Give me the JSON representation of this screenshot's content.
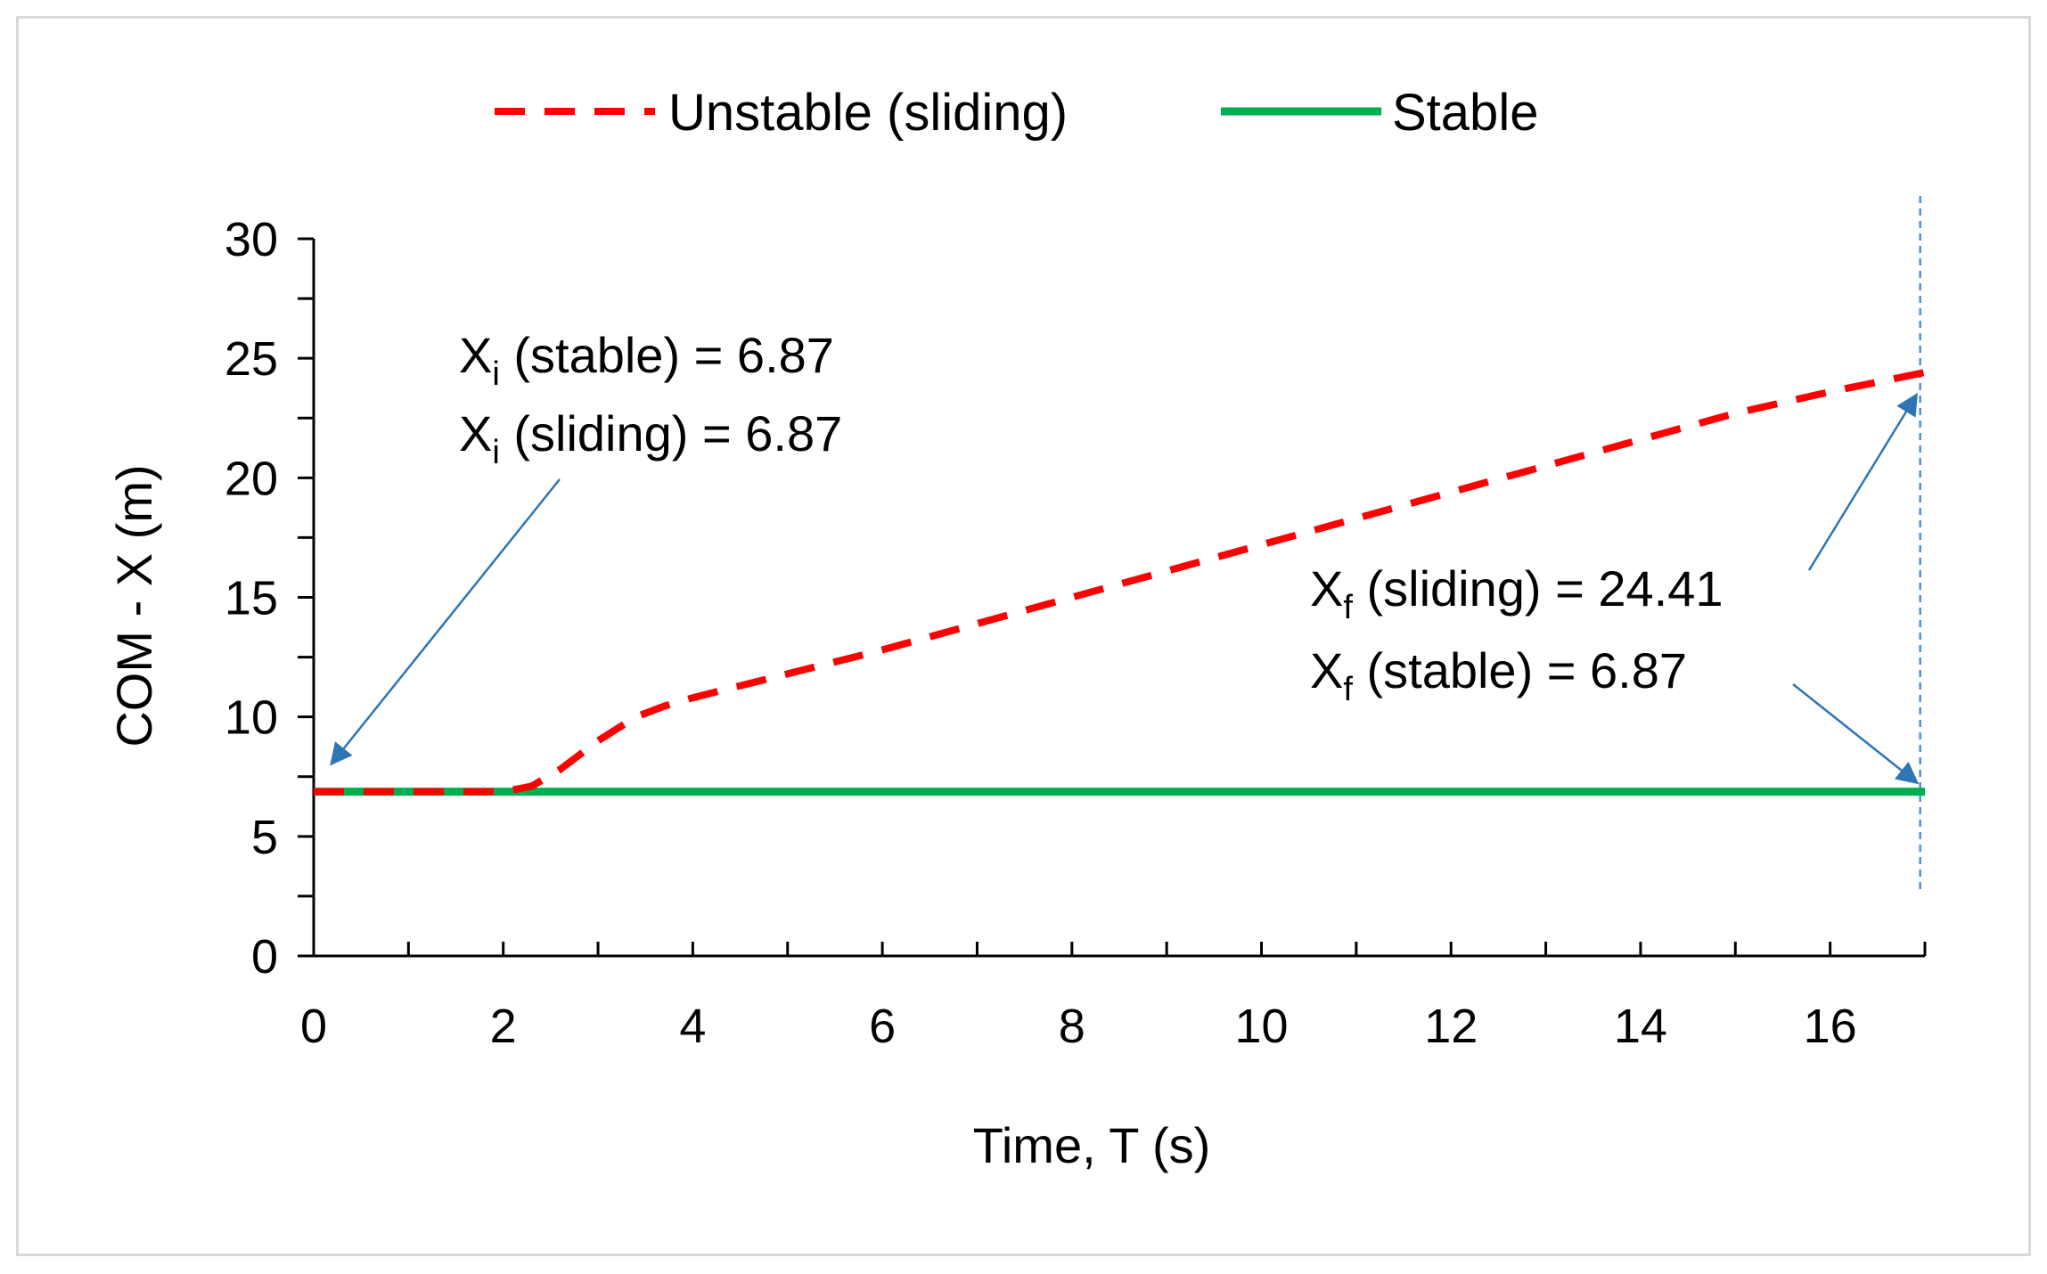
{
  "chart_data": {
    "type": "line",
    "xlabel": "Time, T (s)",
    "ylabel": "COM - X (m)",
    "xlim": [
      0,
      17
    ],
    "ylim": [
      0,
      30
    ],
    "x_ticks": [
      "0",
      "2",
      "4",
      "6",
      "8",
      "10",
      "12",
      "14",
      "16"
    ],
    "y_ticks": [
      "0",
      "5",
      "10",
      "15",
      "20",
      "25",
      "30"
    ],
    "legend_position": "top",
    "series": [
      {
        "name": "Unstable (sliding)",
        "color": "#ff0000",
        "style": "dashed",
        "x": [
          0,
          1,
          2,
          2.3,
          2.6,
          3.0,
          3.4,
          3.7,
          4.0,
          5,
          6,
          7,
          8,
          9,
          10,
          11,
          12,
          13,
          14,
          15,
          16,
          17
        ],
        "y": [
          6.87,
          6.87,
          6.87,
          7.1,
          7.8,
          9.0,
          10.0,
          10.45,
          10.8,
          11.8,
          12.8,
          13.9,
          15.0,
          16.1,
          17.2,
          18.3,
          19.4,
          20.5,
          21.6,
          22.7,
          23.6,
          24.41
        ]
      },
      {
        "name": "Stable",
        "color": "#00b050",
        "style": "solid",
        "x": [
          0,
          17
        ],
        "y": [
          6.87,
          6.87
        ]
      }
    ],
    "reference_line": {
      "x": 16.95,
      "color": "#4a90d9",
      "style": "dashed"
    },
    "annotations": [
      {
        "lines": [
          {
            "base": "X",
            "sub": "i",
            "rest": " (stable) = 6.87"
          },
          {
            "base": "X",
            "sub": "i",
            "rest": " (sliding) = 6.87"
          }
        ],
        "arrow_targets": [
          {
            "x": 0.2,
            "y": 8.1
          }
        ]
      },
      {
        "lines": [
          {
            "base": "X",
            "sub": "f",
            "rest": " (sliding) = 24.41"
          },
          {
            "base": "X",
            "sub": "f",
            "rest": " (stable) = 6.87"
          }
        ],
        "arrow_targets": [
          {
            "x": 16.9,
            "y": 23.4
          },
          {
            "x": 16.9,
            "y": 7.3
          }
        ]
      }
    ],
    "arrow_color": "#2e75b6"
  }
}
